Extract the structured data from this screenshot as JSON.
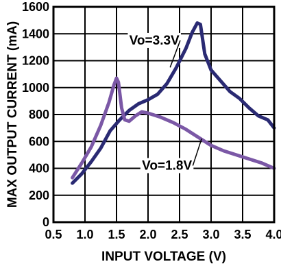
{
  "chart_data": {
    "type": "line",
    "title": "",
    "xlabel": "INPUT VOLTAGE (V)",
    "ylabel": "MAX OUTPUT CURRENT (mA)",
    "xlim": [
      0.5,
      4.0
    ],
    "ylim": [
      0,
      1600
    ],
    "x_ticks": [
      "0.5",
      "1.0",
      "1.5",
      "2.0",
      "2.5",
      "3.0",
      "3.5",
      "4.0"
    ],
    "y_ticks": [
      "0",
      "200",
      "400",
      "600",
      "800",
      "1000",
      "1200",
      "1400",
      "1600"
    ],
    "grid": true,
    "legend": "none",
    "series": [
      {
        "name": "Vo=3.3V",
        "color": "#2a2a73",
        "points": [
          [
            0.8,
            290
          ],
          [
            0.95,
            360
          ],
          [
            1.1,
            450
          ],
          [
            1.25,
            550
          ],
          [
            1.4,
            680
          ],
          [
            1.55,
            760
          ],
          [
            1.7,
            830
          ],
          [
            1.85,
            880
          ],
          [
            2.0,
            910
          ],
          [
            2.15,
            950
          ],
          [
            2.3,
            1030
          ],
          [
            2.45,
            1150
          ],
          [
            2.6,
            1290
          ],
          [
            2.7,
            1410
          ],
          [
            2.78,
            1480
          ],
          [
            2.83,
            1470
          ],
          [
            2.9,
            1250
          ],
          [
            3.0,
            1130
          ],
          [
            3.15,
            1050
          ],
          [
            3.3,
            970
          ],
          [
            3.45,
            920
          ],
          [
            3.6,
            850
          ],
          [
            3.75,
            790
          ],
          [
            3.9,
            760
          ],
          [
            4.0,
            700
          ]
        ]
      },
      {
        "name": "Vo=1.8V",
        "color": "#7b58a6",
        "points": [
          [
            0.8,
            330
          ],
          [
            0.95,
            440
          ],
          [
            1.1,
            560
          ],
          [
            1.25,
            720
          ],
          [
            1.38,
            890
          ],
          [
            1.46,
            1020
          ],
          [
            1.5,
            1070
          ],
          [
            1.53,
            1040
          ],
          [
            1.58,
            850
          ],
          [
            1.63,
            760
          ],
          [
            1.7,
            750
          ],
          [
            1.8,
            790
          ],
          [
            1.9,
            820
          ],
          [
            2.0,
            810
          ],
          [
            2.2,
            780
          ],
          [
            2.4,
            740
          ],
          [
            2.6,
            690
          ],
          [
            2.8,
            630
          ],
          [
            3.0,
            570
          ],
          [
            3.2,
            530
          ],
          [
            3.4,
            500
          ],
          [
            3.6,
            470
          ],
          [
            3.8,
            440
          ],
          [
            4.0,
            400
          ]
        ]
      }
    ],
    "annotations": [
      {
        "text": "Vo=3.3V",
        "x": 2.1,
        "y": 1320,
        "pointer_to": [
          2.35,
          1150
        ]
      },
      {
        "text": "Vo=1.8V",
        "x": 2.3,
        "y": 390,
        "pointer_to": [
          2.85,
          620
        ]
      }
    ]
  }
}
